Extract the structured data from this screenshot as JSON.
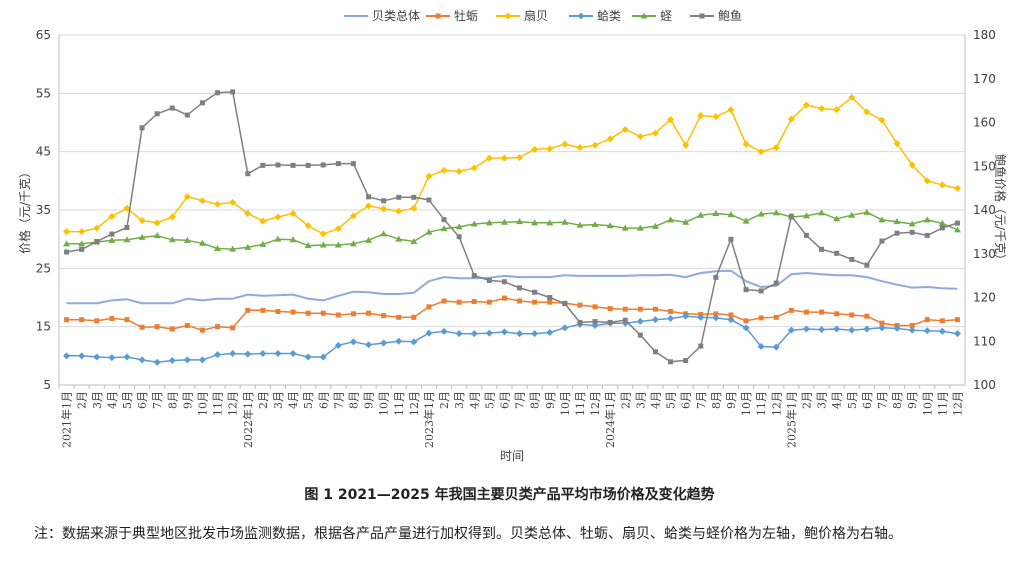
{
  "caption": "图 1  2021—2025 年我国主要贝类产品平均市场价格及变化趋势",
  "note": "注：数据来源于典型地区批发市场监测数据，根据各产品产量进行加权得到。贝类总体、牡蛎、扇贝、蛤类与蛏价格为左轴，鲍价格为右轴。",
  "chart_data": {
    "type": "line",
    "xlabel": "时间",
    "ylabel_left": "价格（元/千克）",
    "ylabel_right": "鲍鱼价格（元/千克）",
    "ylim_left": [
      5,
      65
    ],
    "ylim_right": [
      100,
      180
    ],
    "yticks_left": [
      5,
      15,
      25,
      35,
      45,
      55,
      65
    ],
    "yticks_right": [
      100,
      110,
      120,
      130,
      140,
      150,
      160,
      170,
      180
    ],
    "grid": "horizontal",
    "legend_position": "top-center",
    "categories": [
      "2021年1月",
      "2月",
      "3月",
      "4月",
      "5月",
      "6月",
      "7月",
      "8月",
      "9月",
      "10月",
      "11月",
      "12月",
      "2022年1月",
      "2月",
      "3月",
      "4月",
      "5月",
      "6月",
      "7月",
      "8月",
      "9月",
      "10月",
      "11月",
      "12月",
      "2023年1月",
      "2月",
      "3月",
      "4月",
      "5月",
      "6月",
      "7月",
      "8月",
      "9月",
      "10月",
      "11月",
      "12月",
      "2024年1月",
      "2月",
      "3月",
      "4月",
      "5月",
      "6月",
      "7月",
      "8月",
      "9月",
      "10月",
      "11月",
      "12月",
      "2025年1月",
      "2月",
      "3月",
      "4月",
      "5月",
      "6月",
      "7月",
      "8月",
      "9月",
      "10月",
      "11月",
      "12月"
    ],
    "series": [
      {
        "name": "贝类总体",
        "axis": "left",
        "color": "#8FAADC",
        "marker": "none",
        "values": [
          19.0,
          19.0,
          19.0,
          19.5,
          19.7,
          19.0,
          19.0,
          19.0,
          19.8,
          19.5,
          19.8,
          19.8,
          20.5,
          20.3,
          20.4,
          20.5,
          19.8,
          19.5,
          20.3,
          21.0,
          20.9,
          20.6,
          20.6,
          20.8,
          22.8,
          23.5,
          23.3,
          23.3,
          23.4,
          23.7,
          23.5,
          23.5,
          23.5,
          23.8,
          23.7,
          23.7,
          23.7,
          23.7,
          23.8,
          23.8,
          23.9,
          23.5,
          24.2,
          24.5,
          24.6,
          22.8,
          21.8,
          22.0,
          24.0,
          24.2,
          24.0,
          23.8,
          23.8,
          23.5,
          22.8,
          22.2,
          21.7,
          21.8,
          21.6,
          21.5
        ]
      },
      {
        "name": "牡蛎",
        "axis": "left",
        "color": "#ED7D31",
        "marker": "square",
        "values": [
          16.2,
          16.2,
          16.0,
          16.4,
          16.2,
          14.9,
          15.0,
          14.6,
          15.2,
          14.4,
          15.0,
          14.8,
          17.8,
          17.8,
          17.6,
          17.5,
          17.3,
          17.3,
          17.0,
          17.2,
          17.3,
          16.9,
          16.6,
          16.6,
          18.4,
          19.4,
          19.2,
          19.3,
          19.2,
          19.9,
          19.4,
          19.2,
          19.2,
          19.0,
          18.7,
          18.4,
          18.1,
          18.0,
          18.0,
          18.0,
          17.6,
          17.2,
          17.1,
          17.2,
          17.0,
          16.0,
          16.5,
          16.6,
          17.8,
          17.5,
          17.5,
          17.2,
          17.0,
          16.8,
          15.6,
          15.2,
          15.2,
          16.2,
          16.0,
          16.2
        ]
      },
      {
        "name": "扇贝",
        "axis": "left",
        "color": "#FFC000",
        "marker": "diamond",
        "values": [
          31.3,
          31.3,
          31.9,
          33.9,
          35.3,
          33.2,
          32.8,
          33.8,
          37.3,
          36.6,
          36.0,
          36.3,
          34.4,
          33.1,
          33.8,
          34.4,
          32.3,
          30.9,
          31.8,
          34.0,
          35.7,
          35.2,
          34.8,
          35.3,
          40.8,
          41.8,
          41.6,
          42.2,
          43.9,
          43.9,
          44.0,
          45.4,
          45.5,
          46.3,
          45.7,
          46.1,
          47.2,
          48.8,
          47.6,
          48.2,
          50.5,
          46.1,
          51.2,
          51.0,
          52.2,
          46.3,
          45.0,
          45.7,
          50.6,
          53.0,
          52.4,
          52.2,
          54.3,
          51.8,
          50.4,
          46.4,
          42.7,
          40.0,
          39.3,
          38.7
        ]
      },
      {
        "name": "蛤类",
        "axis": "left",
        "color": "#5B9BD5",
        "marker": "diamond",
        "values": [
          10.0,
          10.0,
          9.8,
          9.7,
          9.8,
          9.3,
          8.9,
          9.2,
          9.3,
          9.3,
          10.2,
          10.4,
          10.3,
          10.4,
          10.4,
          10.4,
          9.8,
          9.8,
          11.8,
          12.4,
          11.9,
          12.2,
          12.5,
          12.4,
          13.9,
          14.2,
          13.8,
          13.8,
          13.9,
          14.1,
          13.8,
          13.8,
          14.0,
          14.8,
          15.4,
          15.2,
          15.6,
          15.6,
          15.9,
          16.2,
          16.4,
          16.8,
          16.6,
          16.5,
          16.2,
          14.8,
          11.6,
          11.5,
          14.4,
          14.6,
          14.5,
          14.6,
          14.4,
          14.6,
          14.8,
          14.7,
          14.4,
          14.3,
          14.2,
          13.8
        ]
      },
      {
        "name": "蛏",
        "axis": "left",
        "color": "#70AD47",
        "marker": "triangle",
        "values": [
          29.2,
          29.2,
          29.5,
          29.8,
          29.9,
          30.3,
          30.6,
          29.9,
          29.8,
          29.3,
          28.4,
          28.3,
          28.6,
          29.1,
          30.0,
          29.9,
          28.9,
          29.0,
          29.0,
          29.2,
          29.8,
          30.9,
          30.0,
          29.6,
          31.2,
          31.8,
          32.1,
          32.6,
          32.8,
          32.9,
          33.0,
          32.8,
          32.8,
          32.9,
          32.4,
          32.5,
          32.3,
          31.9,
          31.9,
          32.2,
          33.3,
          32.9,
          34.1,
          34.4,
          34.2,
          33.1,
          34.3,
          34.5,
          33.8,
          34.0,
          34.5,
          33.5,
          34.1,
          34.6,
          33.3,
          33.0,
          32.6,
          33.3,
          32.7,
          31.6
        ]
      },
      {
        "name": "鲍鱼",
        "axis": "right",
        "color": "#7F7F7F",
        "marker": "square",
        "values": [
          130.4,
          131.0,
          132.8,
          134.5,
          136.0,
          158.8,
          162.0,
          163.3,
          161.7,
          164.5,
          166.8,
          167.0,
          148.3,
          150.2,
          150.3,
          150.2,
          150.2,
          150.3,
          150.6,
          150.6,
          143.0,
          142.1,
          142.9,
          142.9,
          142.3,
          137.8,
          133.9,
          125.0,
          123.9,
          123.6,
          122.2,
          121.2,
          120.0,
          118.6,
          114.3,
          114.5,
          114.3,
          114.8,
          111.4,
          107.6,
          105.3,
          105.6,
          108.9,
          124.6,
          133.3,
          121.8,
          121.5,
          123.3,
          138.6,
          134.2,
          131.0,
          130.1,
          128.7,
          127.4,
          132.9,
          134.7,
          134.9,
          134.2,
          135.9,
          137.0
        ]
      }
    ]
  }
}
